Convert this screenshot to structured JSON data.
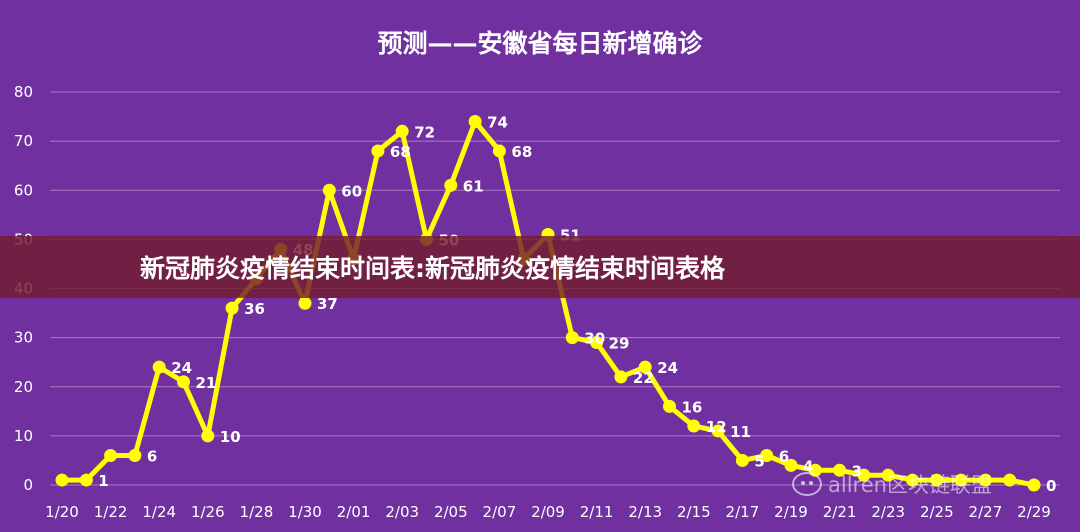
{
  "chart_data": {
    "type": "line",
    "title": "预测——安徽省每日新增确诊",
    "xlabel": "",
    "ylabel": "",
    "ylim": [
      0,
      80
    ],
    "yticks": [
      0,
      10,
      20,
      30,
      40,
      50,
      60,
      70,
      80
    ],
    "grid": true,
    "legend": "none",
    "x_tick_labels": [
      "1/20",
      "1/22",
      "1/24",
      "1/26",
      "1/28",
      "1/30",
      "2/01",
      "2/03",
      "2/05",
      "2/07",
      "2/09",
      "2/11",
      "2/13",
      "2/15",
      "2/17",
      "2/19",
      "2/21",
      "2/23",
      "2/25",
      "2/27",
      "2/29"
    ],
    "x": [
      "1/20",
      "1/21",
      "1/22",
      "1/23",
      "1/24",
      "1/25",
      "1/26",
      "1/27",
      "1/28",
      "1/29",
      "1/30",
      "1/31",
      "2/01",
      "2/02",
      "2/03",
      "2/04",
      "2/05",
      "2/06",
      "2/07",
      "2/08",
      "2/09",
      "2/10",
      "2/11",
      "2/12",
      "2/13",
      "2/14",
      "2/15",
      "2/16",
      "2/17",
      "2/18",
      "2/19",
      "2/20",
      "2/21",
      "2/22",
      "2/23",
      "2/24",
      "2/25",
      "2/26",
      "2/27",
      "2/28",
      "2/29"
    ],
    "values": [
      1,
      1,
      6,
      6,
      24,
      21,
      10,
      36,
      42,
      48,
      37,
      60,
      46,
      68,
      72,
      50,
      61,
      74,
      68,
      46,
      51,
      30,
      29,
      22,
      24,
      16,
      12,
      11,
      5,
      6,
      4,
      3,
      3,
      2,
      2,
      1,
      1,
      1,
      1,
      1,
      0
    ],
    "data_labels": [
      null,
      "1",
      null,
      "6",
      "24",
      "21",
      "10",
      "36",
      null,
      "48",
      "37",
      "60",
      null,
      "68",
      "72",
      "50",
      "61",
      "74",
      "68",
      null,
      "51",
      "30",
      "29",
      "22",
      "24",
      "16",
      "12",
      "11",
      "5",
      "6",
      "4",
      null,
      "3",
      null,
      null,
      null,
      null,
      null,
      null,
      null,
      "0"
    ],
    "line_color": "#ffff00",
    "background_color": "#7030a0"
  },
  "banner": {
    "text": "新冠肺炎疫情结束时间表:新冠肺炎疫情结束时间表格"
  },
  "watermark": {
    "text": "allren区块链联盟",
    "icon": "wechat-icon"
  }
}
